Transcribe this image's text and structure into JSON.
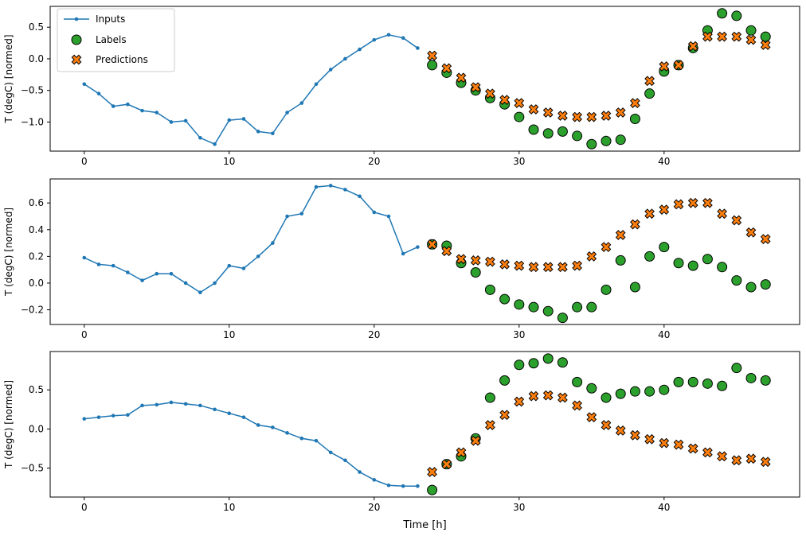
{
  "figure": {
    "background": "#ffffff"
  },
  "colors": {
    "inputs": "#1f77b4",
    "labels": "#2ca02c",
    "predictions": "#ff7f0e",
    "marker_edge": "#000000",
    "legend_border": "#cccccc",
    "axis": "#000000"
  },
  "legend": {
    "items": [
      "Inputs",
      "Labels",
      "Predictions"
    ],
    "position": "upper left"
  },
  "chart_data": [
    {
      "type": "line",
      "title": "",
      "ylabel": "T (degC) [normed]",
      "xlabel": "",
      "grid": false,
      "legend_visible": true,
      "xlim": [
        -2.35,
        49.35
      ],
      "ylim": [
        -1.46,
        0.83
      ],
      "xticks": [
        0,
        10,
        20,
        30,
        40
      ],
      "yticks": [
        0.5,
        0.0,
        -0.5,
        -1.0
      ],
      "series": [
        {
          "name": "Inputs",
          "kind": "line",
          "x": [
            0,
            1,
            2,
            3,
            4,
            5,
            6,
            7,
            8,
            9,
            10,
            11,
            12,
            13,
            14,
            15,
            16,
            17,
            18,
            19,
            20,
            21,
            22,
            23
          ],
          "values": [
            -0.4,
            -0.55,
            -0.75,
            -0.72,
            -0.82,
            -0.85,
            -1.0,
            -0.98,
            -1.25,
            -1.35,
            -0.97,
            -0.95,
            -1.15,
            -1.18,
            -0.85,
            -0.7,
            -0.4,
            -0.17,
            0.0,
            0.15,
            0.3,
            0.38,
            0.33,
            0.17
          ]
        },
        {
          "name": "Labels",
          "kind": "scatter_circle",
          "x": [
            24,
            25,
            26,
            27,
            28,
            29,
            30,
            31,
            32,
            33,
            34,
            35,
            36,
            37,
            38,
            39,
            40,
            41,
            42,
            43,
            44,
            45,
            46,
            47
          ],
          "values": [
            -0.1,
            -0.22,
            -0.38,
            -0.5,
            -0.62,
            -0.72,
            -0.92,
            -1.12,
            -1.18,
            -1.15,
            -1.22,
            -1.35,
            -1.3,
            -1.28,
            -0.95,
            -0.55,
            -0.2,
            -0.1,
            0.17,
            0.45,
            0.72,
            0.68,
            0.45,
            0.35
          ]
        },
        {
          "name": "Predictions",
          "kind": "scatter_x",
          "x": [
            24,
            25,
            26,
            27,
            28,
            29,
            30,
            31,
            32,
            33,
            34,
            35,
            36,
            37,
            38,
            39,
            40,
            41,
            42,
            43,
            44,
            45,
            46,
            47
          ],
          "values": [
            0.05,
            -0.15,
            -0.3,
            -0.45,
            -0.55,
            -0.65,
            -0.7,
            -0.8,
            -0.85,
            -0.9,
            -0.92,
            -0.92,
            -0.9,
            -0.85,
            -0.7,
            -0.35,
            -0.12,
            -0.1,
            0.2,
            0.35,
            0.35,
            0.35,
            0.3,
            0.22
          ]
        }
      ]
    },
    {
      "type": "line",
      "title": "",
      "ylabel": "T (degC) [normed]",
      "xlabel": "",
      "grid": false,
      "legend_visible": false,
      "xlim": [
        -2.35,
        49.35
      ],
      "ylim": [
        -0.31,
        0.78
      ],
      "xticks": [
        0,
        10,
        20,
        30,
        40
      ],
      "yticks": [
        0.6,
        0.4,
        0.2,
        0.0,
        -0.2
      ],
      "series": [
        {
          "name": "Inputs",
          "kind": "line",
          "x": [
            0,
            1,
            2,
            3,
            4,
            5,
            6,
            7,
            8,
            9,
            10,
            11,
            12,
            13,
            14,
            15,
            16,
            17,
            18,
            19,
            20,
            21,
            22,
            23
          ],
          "values": [
            0.19,
            0.14,
            0.13,
            0.08,
            0.02,
            0.07,
            0.07,
            0.0,
            -0.07,
            0.0,
            0.13,
            0.11,
            0.2,
            0.3,
            0.5,
            0.52,
            0.72,
            0.73,
            0.7,
            0.65,
            0.53,
            0.5,
            0.22,
            0.27
          ]
        },
        {
          "name": "Labels",
          "kind": "scatter_circle",
          "x": [
            24,
            25,
            26,
            27,
            28,
            29,
            30,
            31,
            32,
            33,
            34,
            35,
            36,
            37,
            38,
            39,
            40,
            41,
            42,
            43,
            44,
            45,
            46,
            47
          ],
          "values": [
            0.29,
            0.28,
            0.15,
            0.08,
            -0.05,
            -0.12,
            -0.16,
            -0.18,
            -0.21,
            -0.26,
            -0.18,
            -0.18,
            -0.05,
            0.17,
            -0.03,
            0.2,
            0.27,
            0.15,
            0.13,
            0.18,
            0.12,
            0.02,
            -0.03,
            -0.01
          ]
        },
        {
          "name": "Predictions",
          "kind": "scatter_x",
          "x": [
            24,
            25,
            26,
            27,
            28,
            29,
            30,
            31,
            32,
            33,
            34,
            35,
            36,
            37,
            38,
            39,
            40,
            41,
            42,
            43,
            44,
            45,
            46,
            47
          ],
          "values": [
            0.29,
            0.24,
            0.18,
            0.17,
            0.16,
            0.14,
            0.13,
            0.12,
            0.12,
            0.12,
            0.13,
            0.2,
            0.27,
            0.36,
            0.44,
            0.52,
            0.55,
            0.59,
            0.6,
            0.6,
            0.52,
            0.47,
            0.38,
            0.33
          ]
        }
      ]
    },
    {
      "type": "line",
      "title": "",
      "ylabel": "T (degC) [normed]",
      "xlabel": "Time [h]",
      "grid": false,
      "legend_visible": false,
      "xlim": [
        -2.35,
        49.35
      ],
      "ylim": [
        -0.87,
        0.99
      ],
      "xticks": [
        0,
        10,
        20,
        30,
        40
      ],
      "yticks": [
        0.5,
        0.0,
        -0.5
      ],
      "series": [
        {
          "name": "Inputs",
          "kind": "line",
          "x": [
            0,
            1,
            2,
            3,
            4,
            5,
            6,
            7,
            8,
            9,
            10,
            11,
            12,
            13,
            14,
            15,
            16,
            17,
            18,
            19,
            20,
            21,
            22,
            23
          ],
          "values": [
            0.13,
            0.15,
            0.17,
            0.18,
            0.3,
            0.31,
            0.34,
            0.32,
            0.3,
            0.25,
            0.2,
            0.15,
            0.05,
            0.02,
            -0.05,
            -0.12,
            -0.15,
            -0.3,
            -0.4,
            -0.55,
            -0.65,
            -0.72,
            -0.73,
            -0.73
          ]
        },
        {
          "name": "Labels",
          "kind": "scatter_circle",
          "x": [
            24,
            25,
            26,
            27,
            28,
            29,
            30,
            31,
            32,
            33,
            34,
            35,
            36,
            37,
            38,
            39,
            40,
            41,
            42,
            43,
            44,
            45,
            46,
            47
          ],
          "values": [
            -0.78,
            -0.45,
            -0.35,
            -0.12,
            0.4,
            0.62,
            0.82,
            0.84,
            0.9,
            0.85,
            0.6,
            0.52,
            0.4,
            0.45,
            0.48,
            0.48,
            0.5,
            0.6,
            0.6,
            0.58,
            0.55,
            0.78,
            0.65,
            0.62
          ]
        },
        {
          "name": "Predictions",
          "kind": "scatter_x",
          "x": [
            24,
            25,
            26,
            27,
            28,
            29,
            30,
            31,
            32,
            33,
            34,
            35,
            36,
            37,
            38,
            39,
            40,
            41,
            42,
            43,
            44,
            45,
            46,
            47
          ],
          "values": [
            -0.55,
            -0.45,
            -0.3,
            -0.15,
            0.05,
            0.18,
            0.35,
            0.42,
            0.43,
            0.4,
            0.3,
            0.15,
            0.05,
            -0.02,
            -0.08,
            -0.13,
            -0.18,
            -0.2,
            -0.25,
            -0.3,
            -0.35,
            -0.4,
            -0.38,
            -0.42
          ]
        }
      ]
    }
  ]
}
